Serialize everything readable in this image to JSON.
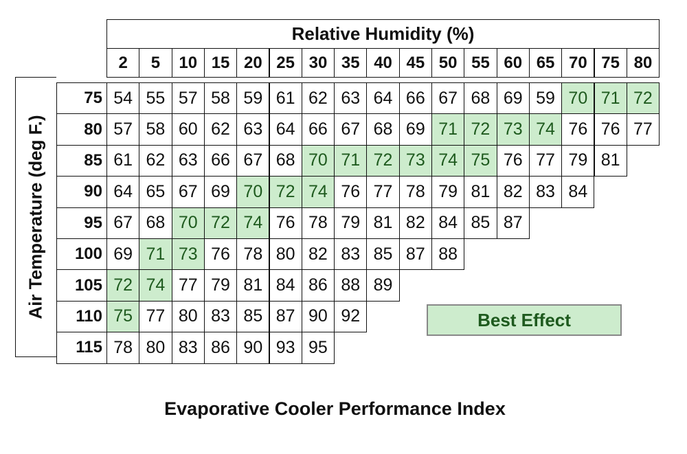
{
  "chart_data": {
    "type": "table",
    "title": "Evaporative Cooler Performance Index",
    "column_header_title": "Relative Humidity (%)",
    "row_header_title": "Air Temperature (deg F.)",
    "legend": {
      "label": "Best Effect",
      "color": "#cdeccd"
    },
    "columns": [
      "2",
      "5",
      "10",
      "15",
      "20",
      "25",
      "30",
      "35",
      "40",
      "45",
      "50",
      "55",
      "60",
      "65",
      "70",
      "75",
      "80"
    ],
    "rows": [
      {
        "temp": "75",
        "values": [
          54,
          55,
          57,
          58,
          59,
          61,
          62,
          63,
          64,
          66,
          67,
          68,
          69,
          59,
          70,
          71,
          72
        ],
        "best": [
          14,
          15,
          16
        ]
      },
      {
        "temp": "80",
        "values": [
          57,
          58,
          60,
          62,
          63,
          64,
          66,
          67,
          68,
          69,
          71,
          72,
          73,
          74,
          76,
          76,
          77
        ],
        "best": [
          10,
          11,
          12,
          13
        ]
      },
      {
        "temp": "85",
        "values": [
          61,
          62,
          63,
          66,
          67,
          68,
          70,
          71,
          72,
          73,
          74,
          75,
          76,
          77,
          79,
          81
        ],
        "best": [
          6,
          7,
          8,
          9,
          10,
          11
        ]
      },
      {
        "temp": "90",
        "values": [
          64,
          65,
          67,
          69,
          70,
          72,
          74,
          76,
          77,
          78,
          79,
          81,
          82,
          83,
          84
        ],
        "best": [
          4,
          5,
          6
        ]
      },
      {
        "temp": "95",
        "values": [
          67,
          68,
          70,
          72,
          74,
          76,
          78,
          79,
          81,
          82,
          84,
          85,
          87
        ],
        "best": [
          2,
          3,
          4
        ]
      },
      {
        "temp": "100",
        "values": [
          69,
          71,
          73,
          76,
          78,
          80,
          82,
          83,
          85,
          87,
          88
        ],
        "best": [
          1,
          2
        ]
      },
      {
        "temp": "105",
        "values": [
          72,
          74,
          77,
          79,
          81,
          84,
          86,
          88,
          89
        ],
        "best": [
          0,
          1
        ]
      },
      {
        "temp": "110",
        "values": [
          75,
          77,
          80,
          83,
          85,
          87,
          90,
          92
        ],
        "best": [
          0
        ]
      },
      {
        "temp": "115",
        "values": [
          78,
          80,
          83,
          86,
          90,
          93,
          95
        ],
        "best": []
      }
    ]
  }
}
